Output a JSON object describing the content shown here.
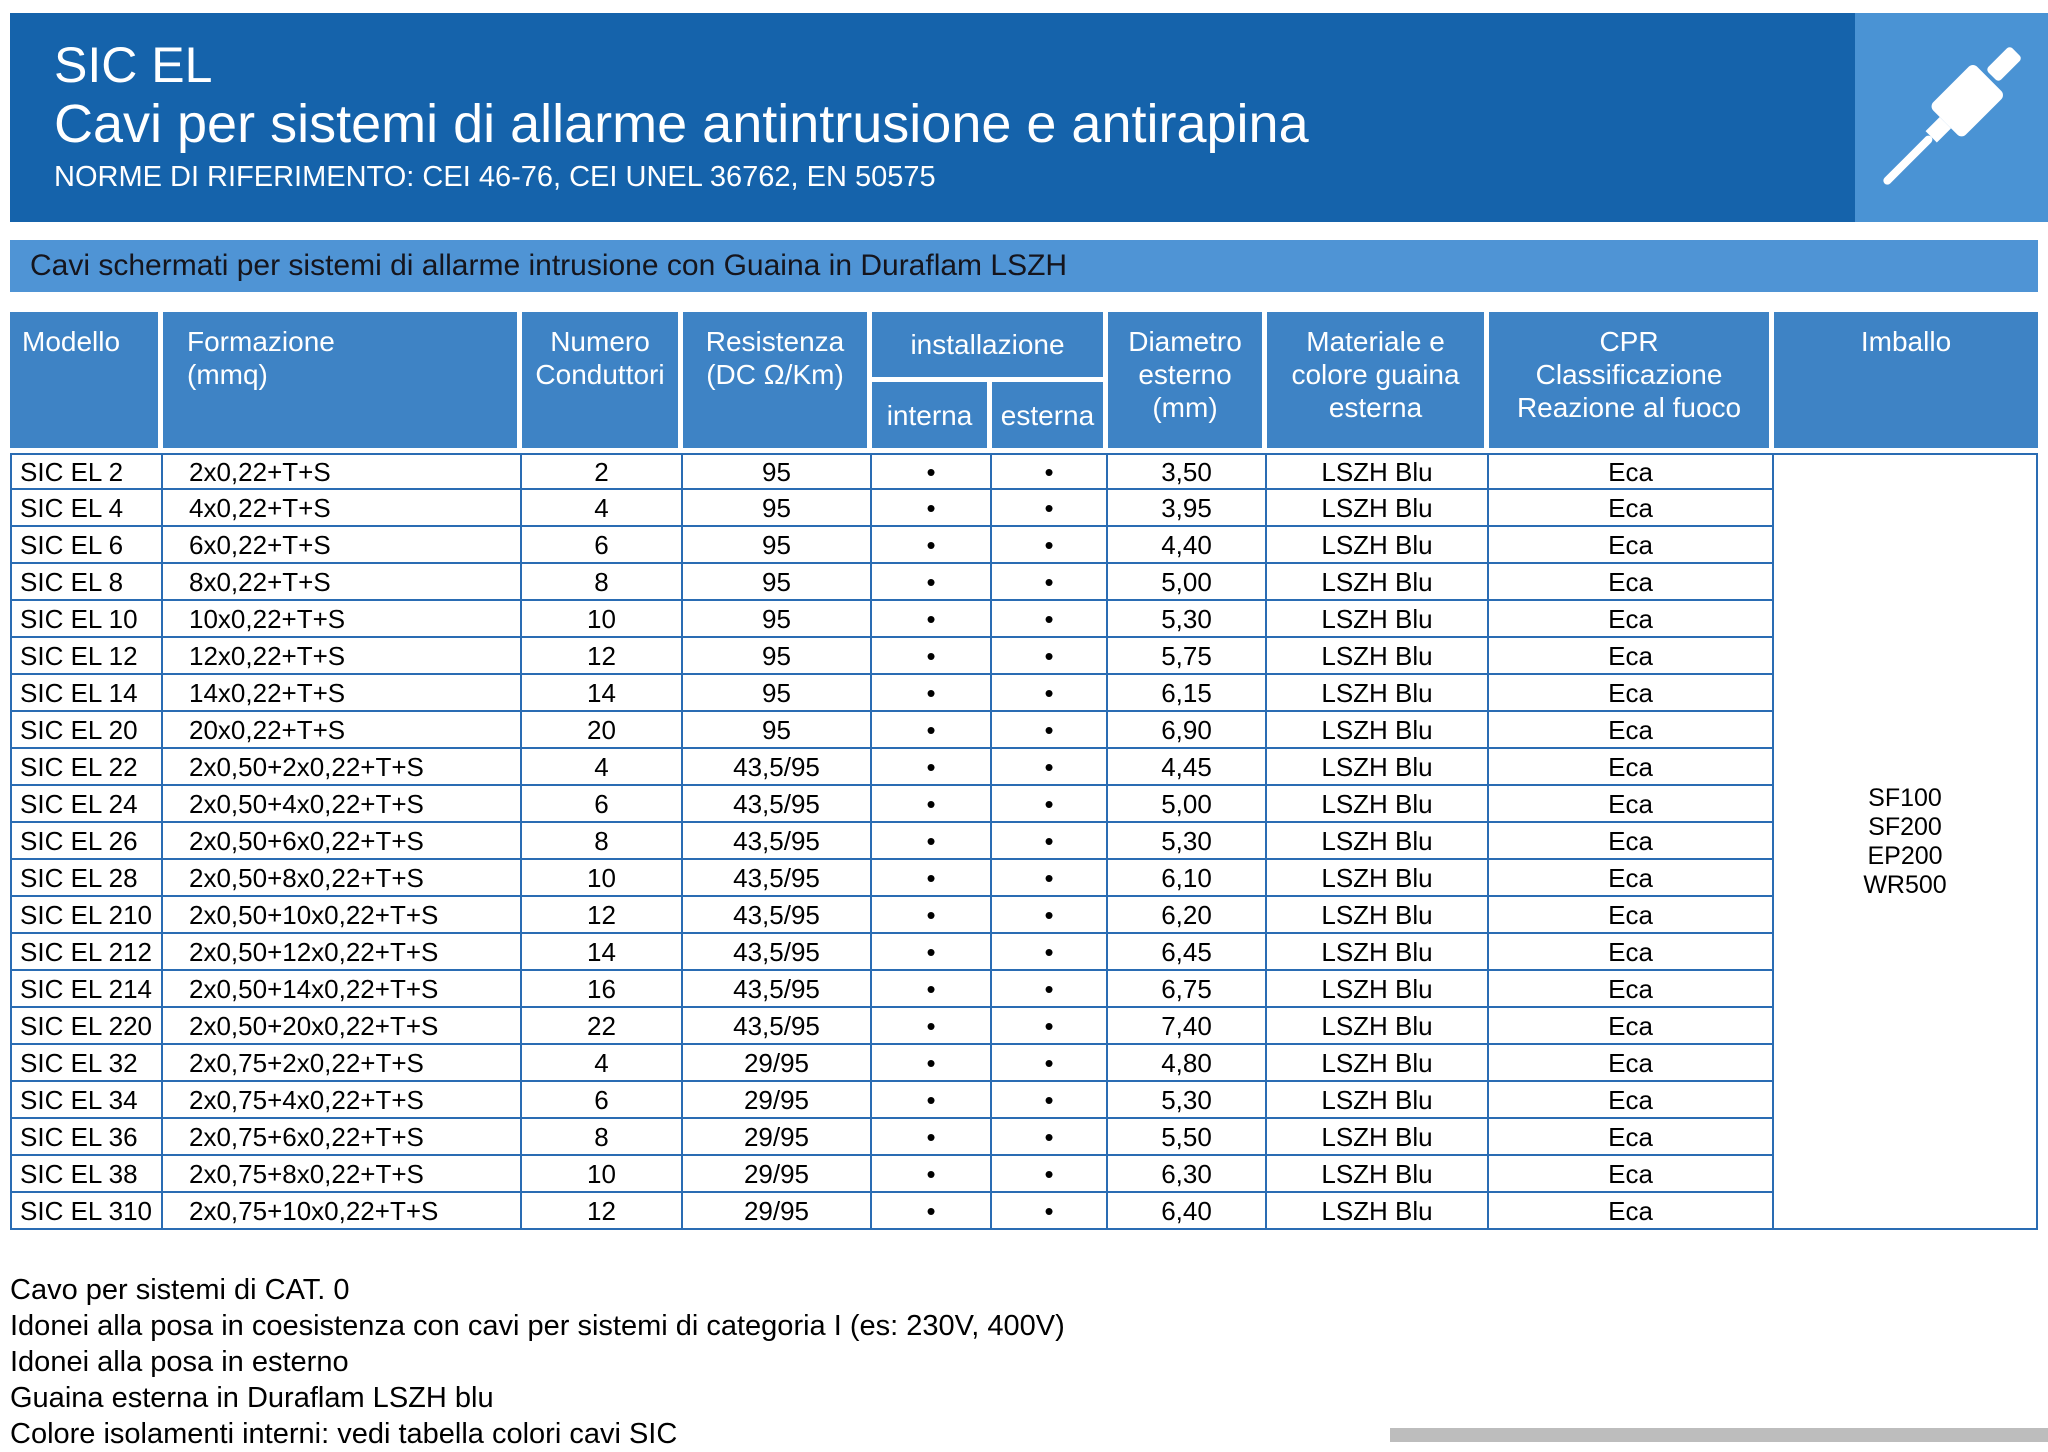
{
  "colors": {
    "brand-dark": "#1563ab",
    "brand-tile": "#4a93d4",
    "brand-banner": "#4f94d5",
    "brand-mid": "#3e83c5",
    "table-border": "#2a6cb3",
    "strip": "#bdbdbd"
  },
  "header": {
    "product": "SIC EL",
    "title": "Cavi per sistemi di allarme antintrusione e antirapina",
    "norms": "NORME DI RIFERIMENTO: CEI 46-76, CEI UNEL 36762, EN 50575"
  },
  "banner": "Cavi schermati per sistemi di allarme intrusione con Guaina in Duraflam LSZH",
  "table": {
    "headers": {
      "modello": "Modello",
      "formazione": "Formazione\n(mmq)",
      "conduttori": "Numero\nConduttori",
      "resistenza": "Resistenza\n(DC Ω/Km)",
      "installazione": "installazione",
      "interna": "interna",
      "esterna": "esterna",
      "diametro": "Diametro\nesterno\n(mm)",
      "guaina": "Materiale e\ncolore guaina\nesterna",
      "cpr": "CPR\nClassificazione\nReazione al fuoco",
      "imballo": "Imballo"
    },
    "imballo": [
      "SF100",
      "SF200",
      "EP200",
      "WR500"
    ],
    "rows": [
      {
        "modello": "SIC EL 2",
        "formazione": "2x0,22+T+S",
        "conduttori": "2",
        "resistenza": "95",
        "interna": "•",
        "esterna": "•",
        "diametro": "3,50",
        "guaina": "LSZH Blu",
        "cpr": "Eca"
      },
      {
        "modello": "SIC EL 4",
        "formazione": "4x0,22+T+S",
        "conduttori": "4",
        "resistenza": "95",
        "interna": "•",
        "esterna": "•",
        "diametro": "3,95",
        "guaina": "LSZH Blu",
        "cpr": "Eca"
      },
      {
        "modello": "SIC EL 6",
        "formazione": "6x0,22+T+S",
        "conduttori": "6",
        "resistenza": "95",
        "interna": "•",
        "esterna": "•",
        "diametro": "4,40",
        "guaina": "LSZH Blu",
        "cpr": "Eca"
      },
      {
        "modello": "SIC EL 8",
        "formazione": "8x0,22+T+S",
        "conduttori": "8",
        "resistenza": "95",
        "interna": "•",
        "esterna": "•",
        "diametro": "5,00",
        "guaina": "LSZH Blu",
        "cpr": "Eca"
      },
      {
        "modello": "SIC EL 10",
        "formazione": "10x0,22+T+S",
        "conduttori": "10",
        "resistenza": "95",
        "interna": "•",
        "esterna": "•",
        "diametro": "5,30",
        "guaina": "LSZH Blu",
        "cpr": "Eca"
      },
      {
        "modello": "SIC EL 12",
        "formazione": "12x0,22+T+S",
        "conduttori": "12",
        "resistenza": "95",
        "interna": "•",
        "esterna": "•",
        "diametro": "5,75",
        "guaina": "LSZH Blu",
        "cpr": "Eca"
      },
      {
        "modello": "SIC EL 14",
        "formazione": "14x0,22+T+S",
        "conduttori": "14",
        "resistenza": "95",
        "interna": "•",
        "esterna": "•",
        "diametro": "6,15",
        "guaina": "LSZH Blu",
        "cpr": "Eca"
      },
      {
        "modello": "SIC EL 20",
        "formazione": "20x0,22+T+S",
        "conduttori": "20",
        "resistenza": "95",
        "interna": "•",
        "esterna": "•",
        "diametro": "6,90",
        "guaina": "LSZH Blu",
        "cpr": "Eca"
      },
      {
        "modello": "SIC EL 22",
        "formazione": "2x0,50+2x0,22+T+S",
        "conduttori": "4",
        "resistenza": "43,5/95",
        "interna": "•",
        "esterna": "•",
        "diametro": "4,45",
        "guaina": "LSZH Blu",
        "cpr": "Eca"
      },
      {
        "modello": "SIC EL 24",
        "formazione": "2x0,50+4x0,22+T+S",
        "conduttori": "6",
        "resistenza": "43,5/95",
        "interna": "•",
        "esterna": "•",
        "diametro": "5,00",
        "guaina": "LSZH Blu",
        "cpr": "Eca"
      },
      {
        "modello": "SIC EL 26",
        "formazione": "2x0,50+6x0,22+T+S",
        "conduttori": "8",
        "resistenza": "43,5/95",
        "interna": "•",
        "esterna": "•",
        "diametro": "5,30",
        "guaina": "LSZH Blu",
        "cpr": "Eca"
      },
      {
        "modello": "SIC EL 28",
        "formazione": "2x0,50+8x0,22+T+S",
        "conduttori": "10",
        "resistenza": "43,5/95",
        "interna": "•",
        "esterna": "•",
        "diametro": "6,10",
        "guaina": "LSZH Blu",
        "cpr": "Eca"
      },
      {
        "modello": "SIC EL 210",
        "formazione": "2x0,50+10x0,22+T+S",
        "conduttori": "12",
        "resistenza": "43,5/95",
        "interna": "•",
        "esterna": "•",
        "diametro": "6,20",
        "guaina": "LSZH Blu",
        "cpr": "Eca"
      },
      {
        "modello": "SIC EL 212",
        "formazione": "2x0,50+12x0,22+T+S",
        "conduttori": "14",
        "resistenza": "43,5/95",
        "interna": "•",
        "esterna": "•",
        "diametro": "6,45",
        "guaina": "LSZH Blu",
        "cpr": "Eca"
      },
      {
        "modello": "SIC EL 214",
        "formazione": "2x0,50+14x0,22+T+S",
        "conduttori": "16",
        "resistenza": "43,5/95",
        "interna": "•",
        "esterna": "•",
        "diametro": "6,75",
        "guaina": "LSZH Blu",
        "cpr": "Eca"
      },
      {
        "modello": "SIC EL 220",
        "formazione": "2x0,50+20x0,22+T+S",
        "conduttori": "22",
        "resistenza": "43,5/95",
        "interna": "•",
        "esterna": "•",
        "diametro": "7,40",
        "guaina": "LSZH Blu",
        "cpr": "Eca"
      },
      {
        "modello": "SIC EL 32",
        "formazione": "2x0,75+2x0,22+T+S",
        "conduttori": "4",
        "resistenza": "29/95",
        "interna": "•",
        "esterna": "•",
        "diametro": "4,80",
        "guaina": "LSZH Blu",
        "cpr": "Eca"
      },
      {
        "modello": "SIC EL 34",
        "formazione": "2x0,75+4x0,22+T+S",
        "conduttori": "6",
        "resistenza": "29/95",
        "interna": "•",
        "esterna": "•",
        "diametro": "5,30",
        "guaina": "LSZH Blu",
        "cpr": "Eca"
      },
      {
        "modello": "SIC EL 36",
        "formazione": "2x0,75+6x0,22+T+S",
        "conduttori": "8",
        "resistenza": "29/95",
        "interna": "•",
        "esterna": "•",
        "diametro": "5,50",
        "guaina": "LSZH Blu",
        "cpr": "Eca"
      },
      {
        "modello": "SIC EL 38",
        "formazione": "2x0,75+8x0,22+T+S",
        "conduttori": "10",
        "resistenza": "29/95",
        "interna": "•",
        "esterna": "•",
        "diametro": "6,30",
        "guaina": "LSZH Blu",
        "cpr": "Eca"
      },
      {
        "modello": "SIC EL 310",
        "formazione": "2x0,75+10x0,22+T+S",
        "conduttori": "12",
        "resistenza": "29/95",
        "interna": "•",
        "esterna": "•",
        "diametro": "6,40",
        "guaina": "LSZH Blu",
        "cpr": "Eca"
      }
    ]
  },
  "notes": [
    "Cavo per sistemi di CAT. 0",
    "Idonei alla posa in coesistenza con cavi per sistemi di categoria I (es: 230V, 400V)",
    "Idonei alla posa in esterno",
    "Guaina esterna in Duraflam LSZH blu",
    "Colore isolamenti interni: vedi tabella colori cavi SIC"
  ]
}
